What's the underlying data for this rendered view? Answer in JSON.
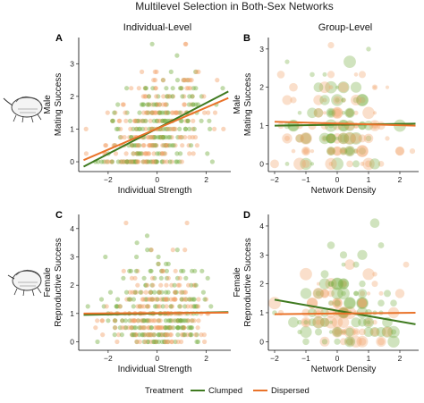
{
  "figure": {
    "title": "Multilevel Selection in Both-Sex Networks",
    "column_titles": [
      "Individual-Level",
      "Group-Level"
    ],
    "legend": {
      "title": "Treatment",
      "items": [
        {
          "label": "Clumped",
          "color": "#3f7a20"
        },
        {
          "label": "Dispersed",
          "color": "#e9732a"
        }
      ]
    },
    "colors": {
      "clumped": "#3f7a20",
      "dispersed": "#e9732a",
      "clumped_point": "#78b044",
      "dispersed_point": "#f2a26a"
    }
  },
  "chart_data": [
    {
      "panel": "A",
      "type": "scatter",
      "xlabel": "Individual Strength",
      "ylabel": [
        "Male",
        "Mating Success"
      ],
      "xlim": [
        -3.2,
        3.0
      ],
      "ylim": [
        -0.3,
        3.8
      ],
      "xticks": [
        -2,
        0,
        2
      ],
      "yticks": [
        0,
        1,
        2,
        3
      ],
      "points_description": "~400 individuals",
      "fits": [
        {
          "name": "Clumped",
          "x": [
            -3.0,
            2.9
          ],
          "y": [
            -0.15,
            2.15
          ]
        },
        {
          "name": "Dispersed",
          "x": [
            -3.0,
            2.9
          ],
          "y": [
            0.05,
            1.95
          ]
        }
      ]
    },
    {
      "panel": "B",
      "type": "scatter",
      "xlabel": "Network Density",
      "ylabel": [
        "Male",
        "Mating Success"
      ],
      "xlim": [
        -2.2,
        2.6
      ],
      "ylim": [
        -0.2,
        3.3
      ],
      "xticks": [
        -2,
        -1,
        0,
        1,
        2
      ],
      "yticks": [
        0,
        1,
        2,
        3
      ],
      "fits": [
        {
          "name": "Clumped",
          "x": [
            -2.0,
            2.5
          ],
          "y": [
            1.0,
            1.05
          ]
        },
        {
          "name": "Dispersed",
          "x": [
            -2.0,
            2.5
          ],
          "y": [
            1.1,
            1.0
          ]
        }
      ]
    },
    {
      "panel": "C",
      "type": "scatter",
      "xlabel": "Individual Strength",
      "ylabel": [
        "Female",
        "Reproductive Success"
      ],
      "xlim": [
        -3.2,
        3.0
      ],
      "ylim": [
        -0.3,
        4.5
      ],
      "xticks": [
        -2,
        0,
        2
      ],
      "yticks": [
        0,
        1,
        2,
        3,
        4
      ],
      "fits": [
        {
          "name": "Clumped",
          "x": [
            -3.0,
            2.9
          ],
          "y": [
            0.95,
            1.05
          ]
        },
        {
          "name": "Dispersed",
          "x": [
            -3.0,
            2.9
          ],
          "y": [
            1.0,
            1.03
          ]
        }
      ]
    },
    {
      "panel": "D",
      "type": "scatter",
      "xlabel": "Network Density",
      "ylabel": [
        "Female",
        "Reproductive Success"
      ],
      "xlim": [
        -2.2,
        2.6
      ],
      "ylim": [
        -0.3,
        4.4
      ],
      "xticks": [
        -2,
        -1,
        0,
        1,
        2
      ],
      "yticks": [
        0,
        1,
        2,
        3,
        4
      ],
      "fits": [
        {
          "name": "Clumped",
          "x": [
            -2.0,
            2.5
          ],
          "y": [
            1.45,
            0.6
          ]
        },
        {
          "name": "Dispersed",
          "x": [
            -2.0,
            2.5
          ],
          "y": [
            0.95,
            1.0
          ]
        }
      ]
    }
  ]
}
